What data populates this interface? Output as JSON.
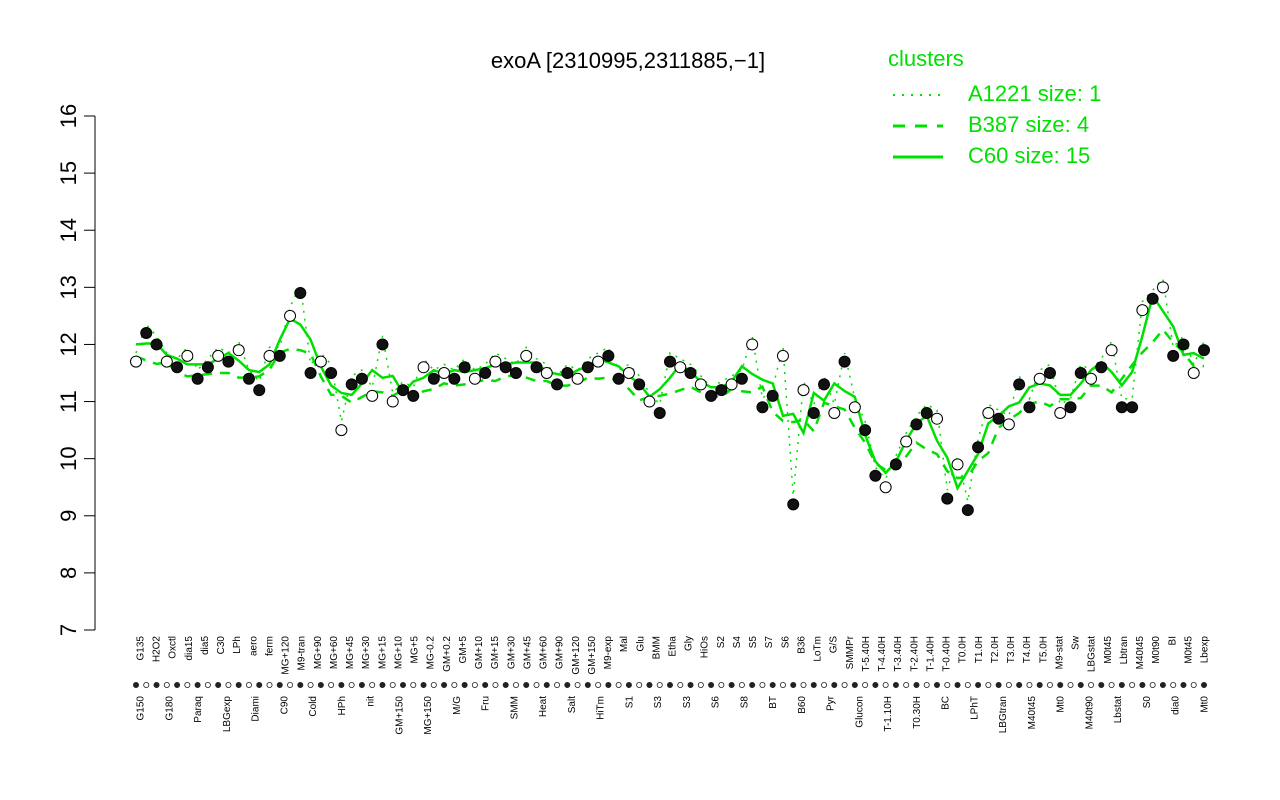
{
  "chart_data": {
    "type": "line",
    "title": "exoA [2310995,2311885,−1]",
    "xlabel": "",
    "ylabel": "",
    "ylim": [
      7,
      16
    ],
    "yticks": [
      7,
      8,
      9,
      10,
      11,
      12,
      13,
      14,
      15,
      16
    ],
    "grid": false,
    "legend": {
      "title": "clusters",
      "placement": "top-right",
      "color": "#00e000",
      "entries": [
        {
          "label": "A1221 size: 1",
          "style": "dotted"
        },
        {
          "label": "B387 size: 4",
          "style": "dashed"
        },
        {
          "label": "C60 size: 15",
          "style": "solid"
        }
      ]
    },
    "x_tick_labels_top": [
      "G135",
      "H2O2",
      "Oxctl",
      "dia15",
      "dia5",
      "C30",
      "LPh",
      "aero",
      "ferm",
      "MG+120",
      "M9-tran",
      "MG+90",
      "MG+60",
      "MG+45",
      "MG+30",
      "MG+15",
      "MG+10",
      "MG+5",
      "MG-0.2",
      "GM+0.2",
      "GM+5",
      "GM+10",
      "GM+15",
      "GM+30",
      "GM+45",
      "GM+60",
      "GM+90",
      "GM+120",
      "GM+150",
      "M9-exp",
      "Mal",
      "Glu",
      "BMM",
      "Etha",
      "Gly",
      "HiOs",
      "S2",
      "S4",
      "S5",
      "S7",
      "S6",
      "B36",
      "LoTm",
      "G/S",
      "SMMPr",
      "T-5.40H",
      "T-4.40H",
      "T-3.40H",
      "T-2.40H",
      "T-1.40H",
      "T-0.40H",
      "T0.0H",
      "T1.0H",
      "T2.0H",
      "T3.0H",
      "T4.0H",
      "T5.0H",
      "M9-stat",
      "Sw",
      "LBGstat",
      "M0t45",
      "Lbtran",
      "M40t45",
      "M0t90",
      "BI",
      "M0t45",
      "Lbexp"
    ],
    "x_tick_labels_bottom": [
      "G150",
      "G180",
      "Paraq",
      "LBGexp",
      "Diami",
      "C90",
      "Cold",
      "HPh",
      "nit",
      "GM+150",
      "MG+150",
      "M/G",
      "Fru",
      "SMM",
      "Heat",
      "Salt",
      "HiTm",
      "S1",
      "S3",
      "S3",
      "S6",
      "S8",
      "BT",
      "B60",
      "Pyr",
      "Glucon",
      "T-1.10H",
      "T0.30H",
      "BC",
      "LPhT",
      "LBGtran",
      "M40t45",
      "Mt0",
      "M40t90",
      "Lbstat",
      "S0",
      "dia0",
      "Mt0"
    ],
    "series": [
      {
        "name": "exoA",
        "x": [
          1,
          2,
          3,
          4,
          5,
          6,
          7,
          8,
          9,
          10,
          11,
          12,
          13,
          14,
          15,
          16,
          17,
          18,
          19,
          20,
          21,
          22,
          23,
          24,
          25,
          26,
          27,
          28,
          29,
          30,
          31,
          32,
          33,
          34,
          35,
          36,
          37,
          38,
          39,
          40,
          41,
          42,
          43,
          44,
          45,
          46,
          47,
          48,
          49,
          50,
          51,
          52,
          53,
          54,
          55,
          56,
          57,
          58,
          59,
          60,
          61,
          62,
          63,
          64,
          65,
          66,
          67,
          68,
          69,
          70,
          71,
          72,
          73,
          74,
          75,
          76,
          77,
          78,
          79,
          80,
          81,
          82,
          83,
          84,
          85,
          86,
          87,
          88,
          89,
          90,
          91,
          92,
          93,
          94,
          95,
          96,
          97,
          98,
          99,
          100,
          101,
          102,
          103,
          104,
          105
        ],
        "y": [
          11.7,
          12.2,
          12.0,
          11.7,
          11.6,
          11.8,
          11.4,
          11.6,
          11.8,
          11.7,
          11.9,
          11.4,
          11.2,
          11.8,
          11.8,
          12.5,
          12.9,
          11.5,
          11.7,
          11.5,
          10.5,
          11.3,
          11.4,
          11.1,
          12.0,
          11.0,
          11.2,
          11.1,
          11.6,
          11.4,
          11.5,
          11.4,
          11.6,
          11.4,
          11.5,
          11.7,
          11.6,
          11.5,
          11.8,
          11.6,
          11.5,
          11.3,
          11.5,
          11.4,
          11.6,
          11.7,
          11.8,
          11.4,
          11.5,
          11.3,
          11.0,
          10.8,
          11.7,
          11.6,
          11.5,
          11.3,
          11.1,
          11.2,
          11.3,
          11.4,
          12.0,
          10.9,
          11.1,
          11.8,
          9.2,
          11.2,
          10.8,
          11.3,
          10.8,
          11.7,
          10.9,
          10.5,
          9.7,
          9.5,
          9.9,
          10.3,
          10.6,
          10.8,
          10.7,
          9.3,
          9.9,
          9.1,
          10.2,
          10.8,
          10.7,
          10.6,
          11.3,
          10.9,
          11.4,
          11.5,
          10.8,
          10.9,
          11.5,
          11.4,
          11.6,
          11.9,
          10.9,
          10.9,
          12.6,
          12.8,
          13.0,
          11.8,
          12.0,
          11.5,
          11.9
        ]
      }
    ]
  }
}
